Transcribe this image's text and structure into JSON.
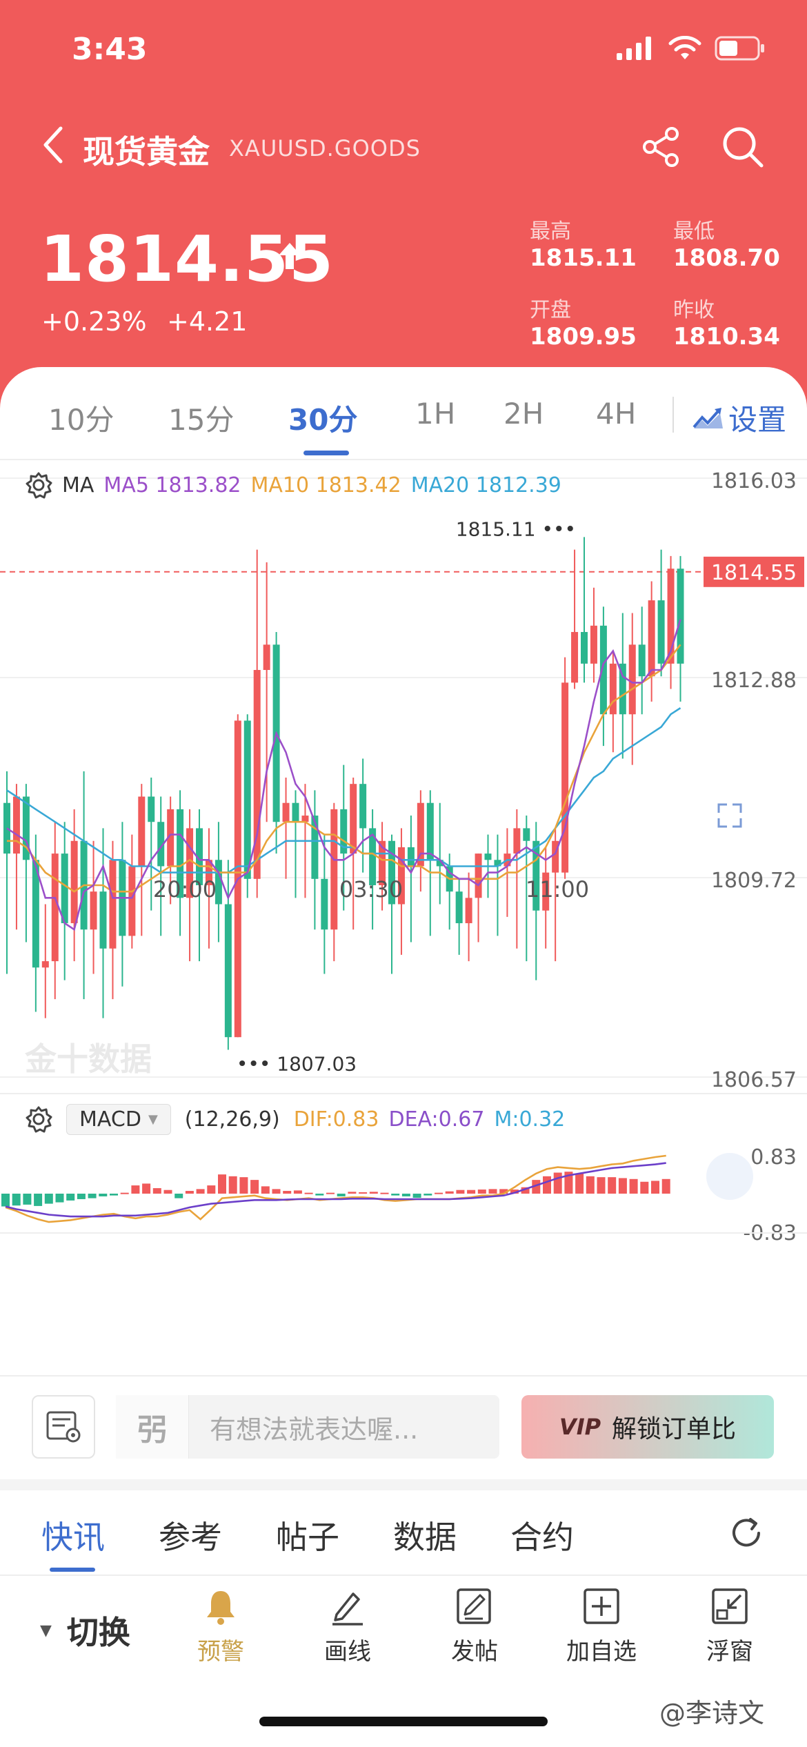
{
  "status_bar": {
    "time": "3:43"
  },
  "nav": {
    "title": "现货黄金",
    "symbol": "XAUUSD.GOODS"
  },
  "quote": {
    "price": "1814.55",
    "change_pct": "+0.23%",
    "change_abs": "+4.21",
    "high_label": "最高",
    "high": "1815.11",
    "low_label": "最低",
    "low": "1808.70",
    "open_label": "开盘",
    "open": "1809.95",
    "prev_close_label": "昨收",
    "prev_close": "1810.34",
    "up_color": "#f05a5a"
  },
  "timeframes": [
    "10分",
    "15分",
    "30分",
    "1H",
    "2H",
    "4H"
  ],
  "active_timeframe": "30分",
  "settings_label": "设置",
  "ma_legend": {
    "label": "MA",
    "ma5": "MA5 1813.82",
    "ma10": "MA10 1813.42",
    "ma20": "MA20 1812.39",
    "colors": {
      "ma5": "#9b4fc9",
      "ma10": "#e9a33a",
      "ma20": "#39a8d6"
    }
  },
  "macd_legend": {
    "select": "MACD",
    "params": "(12,26,9)",
    "dif": "DIF:0.83",
    "dea": "DEA:0.67",
    "m": "M:0.32"
  },
  "watermark_chart": "金十数据",
  "chart_data": [
    {
      "type": "candlestick",
      "y_ticks": [
        "1816.03",
        "1812.88",
        "1809.72",
        "1806.57"
      ],
      "ylim": [
        1806.57,
        1816.03
      ],
      "x_ticks": [
        "20:00",
        "03:30",
        "11:00"
      ],
      "current_price": "1814.55",
      "max_label": "1815.11",
      "min_label": "1807.03",
      "up_color": "#f05a5a",
      "down_color": "#2bb58e",
      "candles": [
        [
          1810.9,
          1810.1,
          1811.4,
          1808.2
        ],
        [
          1810.1,
          1811.0,
          1811.2,
          1808.9
        ],
        [
          1811.0,
          1810.0,
          1811.2,
          1808.7
        ],
        [
          1810.0,
          1808.3,
          1810.4,
          1807.6
        ],
        [
          1808.3,
          1808.4,
          1809.3,
          1807.5
        ],
        [
          1808.4,
          1810.1,
          1810.6,
          1807.8
        ],
        [
          1810.1,
          1809.0,
          1810.6,
          1808.1
        ],
        [
          1809.0,
          1810.3,
          1810.8,
          1808.4
        ],
        [
          1810.3,
          1808.9,
          1811.4,
          1807.8
        ],
        [
          1808.9,
          1809.5,
          1810.3,
          1808.2
        ],
        [
          1809.5,
          1808.6,
          1810.5,
          1807.5
        ],
        [
          1808.6,
          1810.0,
          1810.3,
          1807.8
        ],
        [
          1810.0,
          1808.8,
          1810.6,
          1808.0
        ],
        [
          1808.8,
          1809.9,
          1810.4,
          1808.6
        ],
        [
          1809.9,
          1811.0,
          1811.2,
          1808.8
        ],
        [
          1811.0,
          1810.6,
          1811.3,
          1809.2
        ],
        [
          1810.6,
          1809.9,
          1811.0,
          1808.8
        ],
        [
          1809.9,
          1810.8,
          1811.0,
          1809.3
        ],
        [
          1810.8,
          1809.4,
          1811.1,
          1808.8
        ],
        [
          1809.4,
          1810.5,
          1810.8,
          1808.4
        ],
        [
          1810.5,
          1809.6,
          1810.8,
          1808.4
        ],
        [
          1809.6,
          1810.0,
          1810.5,
          1808.6
        ],
        [
          1810.0,
          1809.3,
          1810.6,
          1808.7
        ],
        [
          1809.3,
          1807.2,
          1810.0,
          1807.0
        ],
        [
          1807.2,
          1812.2,
          1812.3,
          1807.2
        ],
        [
          1812.2,
          1809.7,
          1812.3,
          1809.4
        ],
        [
          1809.7,
          1813.0,
          1814.9,
          1809.4
        ],
        [
          1813.0,
          1813.4,
          1814.7,
          1810.6
        ],
        [
          1813.4,
          1810.6,
          1813.6,
          1810.1
        ],
        [
          1810.6,
          1810.9,
          1811.3,
          1809.7
        ],
        [
          1810.9,
          1810.6,
          1811.1,
          1809.4
        ],
        [
          1810.6,
          1810.7,
          1811.2,
          1809.4
        ],
        [
          1810.7,
          1809.7,
          1811.1,
          1808.9
        ],
        [
          1809.7,
          1808.9,
          1810.4,
          1808.2
        ],
        [
          1808.9,
          1810.8,
          1810.9,
          1808.4
        ],
        [
          1810.8,
          1810.1,
          1811.5,
          1809.2
        ],
        [
          1810.1,
          1811.2,
          1811.3,
          1808.9
        ],
        [
          1811.2,
          1810.5,
          1811.6,
          1809.8
        ],
        [
          1810.5,
          1809.6,
          1810.8,
          1808.9
        ],
        [
          1809.6,
          1810.3,
          1810.6,
          1809.2
        ],
        [
          1810.3,
          1809.3,
          1810.4,
          1808.2
        ],
        [
          1809.3,
          1810.2,
          1810.5,
          1808.5
        ],
        [
          1810.2,
          1809.9,
          1810.7,
          1808.7
        ],
        [
          1809.9,
          1810.9,
          1811.1,
          1809.5
        ],
        [
          1810.9,
          1810.0,
          1811.1,
          1808.8
        ],
        [
          1810.0,
          1809.9,
          1810.9,
          1809.3
        ],
        [
          1809.9,
          1809.5,
          1810.1,
          1808.9
        ],
        [
          1809.5,
          1809.0,
          1809.7,
          1808.5
        ],
        [
          1809.0,
          1809.4,
          1809.8,
          1808.4
        ],
        [
          1809.4,
          1810.1,
          1810.1,
          1808.7
        ],
        [
          1810.1,
          1810.0,
          1810.4,
          1809.4
        ],
        [
          1810.0,
          1809.9,
          1810.4,
          1808.8
        ],
        [
          1809.9,
          1810.1,
          1810.5,
          1809.1
        ],
        [
          1810.1,
          1810.5,
          1810.8,
          1808.6
        ],
        [
          1810.5,
          1810.3,
          1810.7,
          1808.4
        ],
        [
          1810.3,
          1809.2,
          1810.6,
          1808.1
        ],
        [
          1809.2,
          1809.8,
          1810.2,
          1808.6
        ],
        [
          1809.8,
          1810.3,
          1810.5,
          1808.4
        ],
        [
          1809.8,
          1812.8,
          1813.2,
          1809.7
        ],
        [
          1812.8,
          1813.6,
          1814.9,
          1812.7
        ],
        [
          1813.6,
          1813.1,
          1815.1,
          1812.8
        ],
        [
          1813.1,
          1813.7,
          1814.3,
          1812.8
        ],
        [
          1813.7,
          1812.3,
          1814.0,
          1811.8
        ],
        [
          1812.3,
          1813.1,
          1813.3,
          1811.7
        ],
        [
          1813.1,
          1812.3,
          1813.9,
          1811.6
        ],
        [
          1812.3,
          1813.4,
          1813.9,
          1811.5
        ],
        [
          1813.4,
          1812.9,
          1814.0,
          1812.3
        ],
        [
          1812.9,
          1814.1,
          1814.4,
          1812.5
        ],
        [
          1814.1,
          1813.1,
          1814.9,
          1812.9
        ],
        [
          1813.1,
          1814.6,
          1814.8,
          1812.7
        ],
        [
          1814.6,
          1813.1,
          1814.8,
          1812.5
        ]
      ],
      "ma5": [
        1810.5,
        1810.4,
        1810.3,
        1809.9,
        1809.4,
        1809.4,
        1809.0,
        1808.9,
        1809.5,
        1809.6,
        1809.9,
        1809.4,
        1809.4,
        1809.4,
        1809.7,
        1810.0,
        1810.2,
        1810.4,
        1810.4,
        1810.2,
        1810.0,
        1810.0,
        1809.8,
        1809.4,
        1809.7,
        1809.8,
        1810.4,
        1811.4,
        1812.0,
        1811.7,
        1811.2,
        1811.0,
        1810.6,
        1810.2,
        1810.0,
        1810.0,
        1810.1,
        1810.3,
        1810.4,
        1810.2,
        1810.1,
        1810.0,
        1809.8,
        1810.1,
        1810.1,
        1810.0,
        1809.8,
        1809.7,
        1809.7,
        1809.6,
        1809.8,
        1809.8,
        1809.9,
        1810.1,
        1810.2,
        1810.1,
        1810.0,
        1810.1,
        1810.5,
        1811.2,
        1811.8,
        1812.5,
        1813.1,
        1813.3,
        1812.9,
        1812.8,
        1812.8,
        1813.0,
        1813.0,
        1813.3,
        1813.8
      ],
      "ma10": [
        1810.3,
        1810.3,
        1810.2,
        1810.0,
        1809.8,
        1809.7,
        1809.6,
        1809.5,
        1809.6,
        1809.6,
        1809.6,
        1809.5,
        1809.5,
        1809.5,
        1809.6,
        1809.7,
        1809.8,
        1809.9,
        1809.9,
        1810.0,
        1809.9,
        1809.9,
        1809.8,
        1809.8,
        1809.8,
        1809.8,
        1810.0,
        1810.3,
        1810.5,
        1810.6,
        1810.6,
        1810.6,
        1810.5,
        1810.4,
        1810.4,
        1810.3,
        1810.2,
        1810.1,
        1810.1,
        1810.0,
        1810.0,
        1809.9,
        1809.9,
        1809.9,
        1809.8,
        1809.8,
        1809.7,
        1809.7,
        1809.7,
        1809.7,
        1809.7,
        1809.7,
        1809.8,
        1809.8,
        1809.9,
        1810.0,
        1810.2,
        1810.5,
        1810.9,
        1811.3,
        1811.7,
        1812.0,
        1812.3,
        1812.5,
        1812.6,
        1812.7,
        1812.8,
        1812.9,
        1813.0,
        1813.2,
        1813.4
      ],
      "ma20": [
        1811.1,
        1811.0,
        1810.9,
        1810.8,
        1810.7,
        1810.6,
        1810.5,
        1810.4,
        1810.3,
        1810.2,
        1810.1,
        1810.0,
        1810.0,
        1809.9,
        1809.9,
        1809.9,
        1809.8,
        1809.8,
        1809.8,
        1809.8,
        1809.8,
        1809.8,
        1809.8,
        1809.8,
        1809.9,
        1809.9,
        1810.0,
        1810.1,
        1810.2,
        1810.3,
        1810.3,
        1810.3,
        1810.3,
        1810.3,
        1810.3,
        1810.2,
        1810.2,
        1810.1,
        1810.1,
        1810.1,
        1810.1,
        1810.0,
        1810.0,
        1810.0,
        1810.0,
        1810.0,
        1809.9,
        1809.9,
        1809.9,
        1809.9,
        1809.9,
        1809.9,
        1810.0,
        1810.0,
        1810.1,
        1810.2,
        1810.3,
        1810.5,
        1810.7,
        1810.9,
        1811.1,
        1811.3,
        1811.4,
        1811.6,
        1811.7,
        1811.8,
        1811.9,
        1812.0,
        1812.1,
        1812.3,
        1812.4
      ]
    },
    {
      "type": "bar",
      "title": "MACD",
      "y_ticks": [
        "0.83",
        "-0.83"
      ],
      "ylim": [
        -0.83,
        0.83
      ],
      "pos_color": "#f05a5a",
      "neg_color": "#2bb58e",
      "hist": [
        -0.28,
        -0.26,
        -0.24,
        -0.27,
        -0.22,
        -0.19,
        -0.15,
        -0.12,
        -0.1,
        -0.06,
        -0.04,
        0.02,
        0.18,
        0.22,
        0.12,
        0.08,
        -0.1,
        0.06,
        0.1,
        0.18,
        0.42,
        0.38,
        0.36,
        0.3,
        0.16,
        0.1,
        0.06,
        0.07,
        0.02,
        -0.04,
        0.02,
        -0.06,
        0.04,
        0.03,
        0.04,
        0.02,
        -0.04,
        -0.06,
        -0.09,
        -0.04,
        0.02,
        0.05,
        0.08,
        0.08,
        0.09,
        0.1,
        0.1,
        0.09,
        0.14,
        0.3,
        0.38,
        0.46,
        0.48,
        0.44,
        0.38,
        0.36,
        0.36,
        0.34,
        0.32,
        0.26,
        0.28,
        0.32
      ],
      "dif": [
        -0.3,
        -0.38,
        -0.48,
        -0.56,
        -0.62,
        -0.6,
        -0.58,
        -0.54,
        -0.5,
        -0.46,
        -0.44,
        -0.5,
        -0.54,
        -0.5,
        -0.5,
        -0.46,
        -0.4,
        -0.36,
        -0.56,
        -0.34,
        -0.1,
        -0.08,
        -0.06,
        -0.04,
        -0.1,
        -0.12,
        -0.14,
        -0.12,
        -0.1,
        -0.14,
        -0.12,
        -0.1,
        -0.08,
        -0.08,
        -0.1,
        -0.14,
        -0.16,
        -0.14,
        -0.12,
        -0.12,
        -0.12,
        -0.12,
        -0.1,
        -0.08,
        -0.04,
        -0.04,
        0.0,
        0.14,
        0.3,
        0.44,
        0.54,
        0.58,
        0.56,
        0.54,
        0.56,
        0.6,
        0.64,
        0.66,
        0.72,
        0.76,
        0.8,
        0.83
      ],
      "dea": [
        -0.28,
        -0.34,
        -0.38,
        -0.42,
        -0.46,
        -0.48,
        -0.5,
        -0.5,
        -0.5,
        -0.5,
        -0.48,
        -0.48,
        -0.48,
        -0.46,
        -0.44,
        -0.42,
        -0.36,
        -0.3,
        -0.26,
        -0.22,
        -0.2,
        -0.18,
        -0.16,
        -0.14,
        -0.14,
        -0.14,
        -0.13,
        -0.12,
        -0.12,
        -0.12,
        -0.12,
        -0.12,
        -0.11,
        -0.11,
        -0.11,
        -0.12,
        -0.12,
        -0.12,
        -0.12,
        -0.12,
        -0.12,
        -0.12,
        -0.11,
        -0.1,
        -0.08,
        -0.06,
        -0.04,
        0.02,
        0.1,
        0.18,
        0.26,
        0.34,
        0.4,
        0.44,
        0.48,
        0.52,
        0.56,
        0.58,
        0.6,
        0.62,
        0.64,
        0.67
      ]
    }
  ],
  "comment": {
    "placeholder": "有想法就表达喔...",
    "vip_label": "解锁订单比",
    "vip_badge": "VIP"
  },
  "news_tabs": [
    "快讯",
    "参考",
    "帖子",
    "数据",
    "合约"
  ],
  "toolbar": {
    "switch_label": "切换",
    "items": [
      "预警",
      "画线",
      "发帖",
      "加自选",
      "浮窗"
    ]
  },
  "watermark_footer": "@李诗文"
}
